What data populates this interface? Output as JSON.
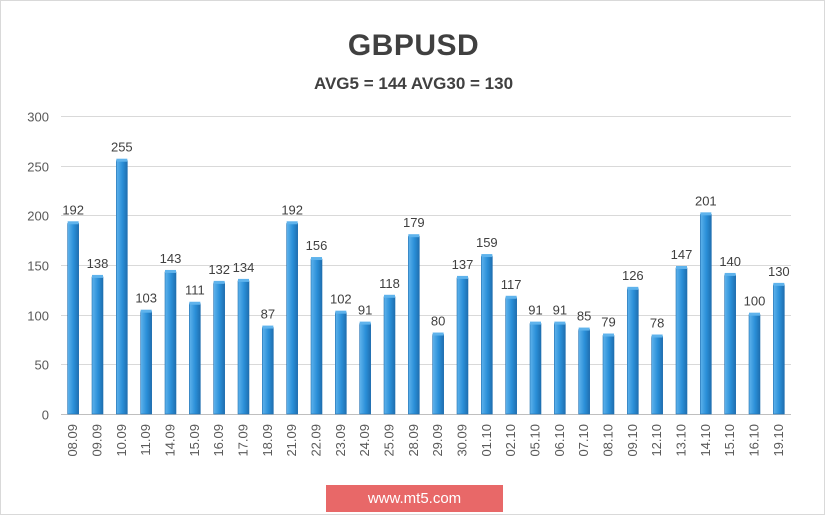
{
  "chart_data": {
    "type": "bar",
    "title": "GBPUSD",
    "subtitle": "AVG5 = 144 AVG30 = 130",
    "categories": [
      "08.09",
      "09.09",
      "10.09",
      "11.09",
      "14.09",
      "15.09",
      "16.09",
      "17.09",
      "18.09",
      "21.09",
      "22.09",
      "23.09",
      "24.09",
      "25.09",
      "28.09",
      "29.09",
      "30.09",
      "01.10",
      "02.10",
      "05.10",
      "06.10",
      "07.10",
      "08.10",
      "09.10",
      "12.10",
      "13.10",
      "14.10",
      "15.10",
      "16.10",
      "19.10"
    ],
    "values": [
      192,
      138,
      255,
      103,
      143,
      111,
      132,
      134,
      87,
      192,
      156,
      102,
      91,
      118,
      179,
      80,
      137,
      159,
      117,
      91,
      91,
      85,
      79,
      126,
      78,
      147,
      201,
      140,
      100,
      130
    ],
    "ylim": [
      0,
      300
    ],
    "yticks": [
      0,
      50,
      100,
      150,
      200,
      250,
      300
    ],
    "grid": true,
    "legend": "none",
    "bar_color": "#2a8fd8",
    "bar_color_dark": "#1f6fb0",
    "bar_color_light": "#5fb3ec"
  },
  "watermark": "www.mt5.com"
}
